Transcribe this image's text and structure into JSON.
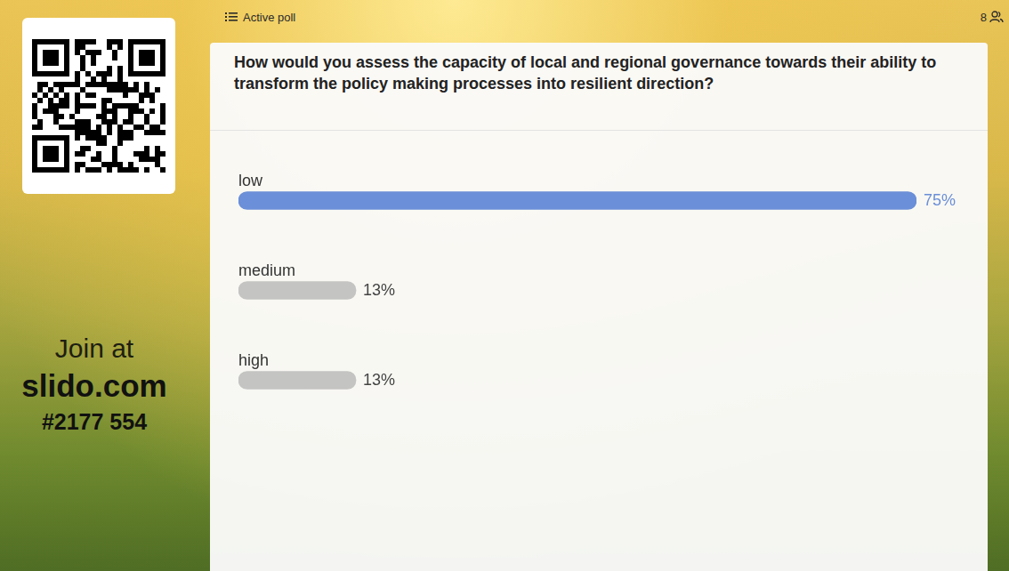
{
  "header": {
    "status": "Active poll",
    "participants": 8
  },
  "join": {
    "prompt": "Join at",
    "site": "slido.com",
    "code": "#2177 554"
  },
  "chart_data": {
    "type": "bar",
    "orientation": "horizontal",
    "title": "How would you assess the capacity of local and regional governance towards their ability to transform the policy making processes into resilient direction?",
    "categories": [
      "low",
      "medium",
      "high"
    ],
    "values": [
      75,
      13,
      13
    ],
    "value_labels": [
      "75%",
      "13%",
      "13%"
    ],
    "colors": [
      "#6b8fd8",
      "#c4c4c2",
      "#c4c4c2"
    ],
    "xlim": [
      0,
      75
    ],
    "data_labels": true,
    "tick_labels": false,
    "grid": false
  }
}
